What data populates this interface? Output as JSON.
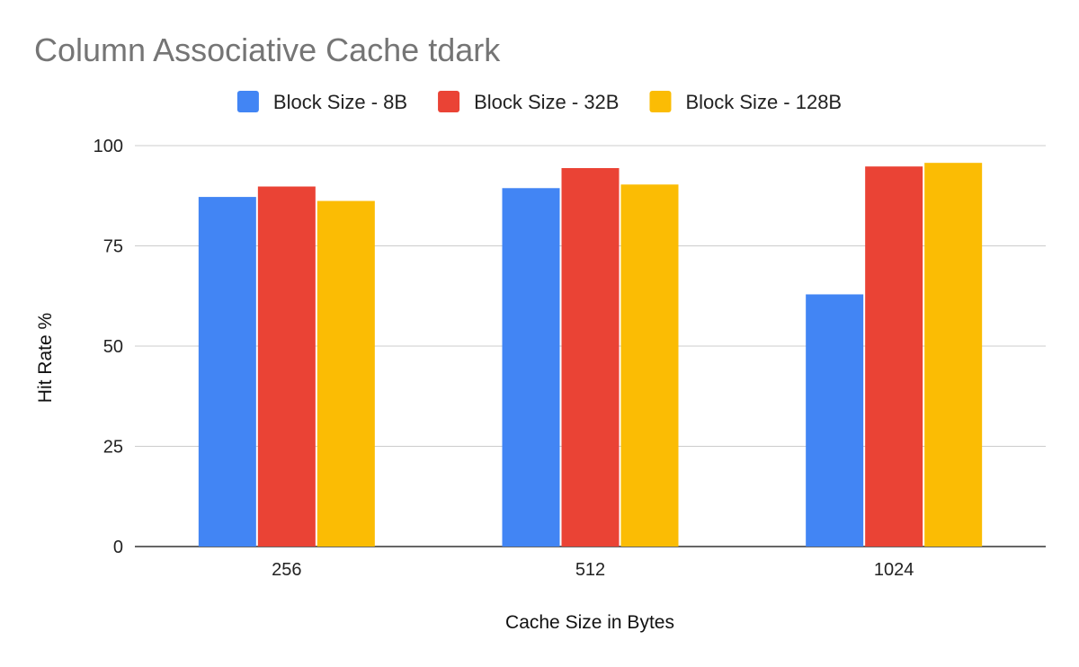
{
  "chart_data": {
    "type": "bar",
    "title": "Column Associative Cache tdark",
    "xlabel": "Cache Size in Bytes",
    "ylabel": "Hit Rate %",
    "categories": [
      "256",
      "512",
      "1024"
    ],
    "series": [
      {
        "name": "Block Size - 8B",
        "color": "#4285F4",
        "values": [
          87.2,
          89.4,
          62.9
        ]
      },
      {
        "name": "Block Size - 32B",
        "color": "#EA4335",
        "values": [
          89.8,
          94.4,
          94.8
        ]
      },
      {
        "name": "Block Size - 128B",
        "color": "#FBBC04",
        "values": [
          86.2,
          90.3,
          95.7
        ]
      }
    ],
    "ylim": [
      0,
      100
    ],
    "yticks": [
      0,
      25,
      50,
      75,
      100
    ],
    "grid": true,
    "legend_position": "top"
  }
}
